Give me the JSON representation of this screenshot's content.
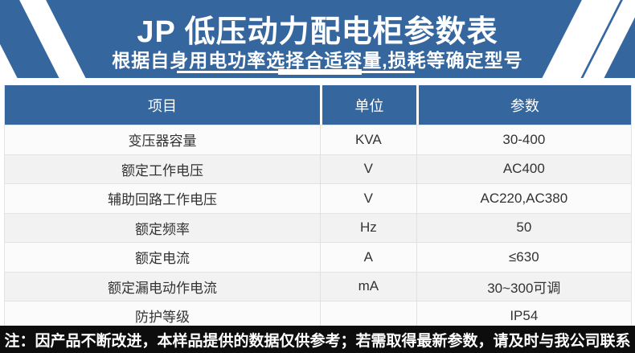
{
  "banner": {
    "title": "JP 低压动力配电柜参数表",
    "subtitle": "根据自身用电功率选择合适容量,损耗等确定型号",
    "bg_color": "#35679e"
  },
  "table": {
    "headers": [
      "项目",
      "单位",
      "参数"
    ],
    "rows": [
      {
        "item": "变压器容量",
        "unit": "KVA",
        "value": "30-400"
      },
      {
        "item": "额定工作电压",
        "unit": "V",
        "value": "AC400"
      },
      {
        "item": "辅助回路工作电压",
        "unit": "V",
        "value": "AC220,AC380"
      },
      {
        "item": "额定频率",
        "unit": "Hz",
        "value": "50"
      },
      {
        "item": "额定电流",
        "unit": "A",
        "value": "≤630"
      },
      {
        "item": "额定漏电动作电流",
        "unit": "mA",
        "value": "30~300可调"
      },
      {
        "item": "防护等级",
        "unit": "",
        "value": "IP54"
      }
    ]
  },
  "footer": {
    "note": "注：因产品不断改进，本样品提供的数据仅供参考；若需取得最新参数，请及时与我公司联系"
  }
}
